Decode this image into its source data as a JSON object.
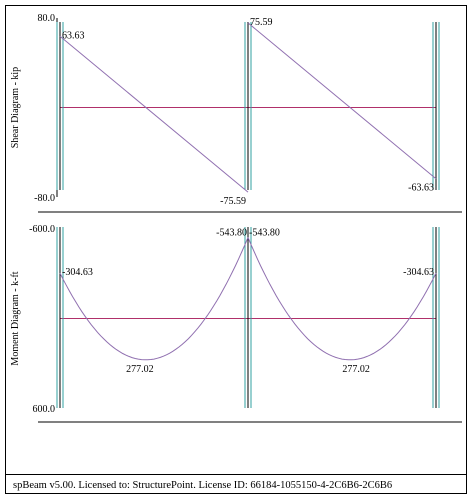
{
  "colors": {
    "zero_line": "#b0306a",
    "curve": "#9070b0",
    "support": "#30a0a0",
    "axis": "#000000"
  },
  "footer": {
    "text": "spBeam v5.00. Licensed to: StructurePoint. License ID: 66184-1055150-4-2C6B6-2C6B6"
  },
  "supports_x": [
    0,
    20,
    40
  ],
  "chart_data": [
    {
      "type": "line",
      "title": "",
      "ylabel": "Shear Diagram - kip",
      "ylim": [
        -80.0,
        80.0
      ],
      "y_inverted": false,
      "y_tick_labels": [
        "80.0",
        "-80.0"
      ],
      "xlim": [
        0,
        40
      ],
      "series": [
        {
          "x": [
            0,
            20
          ],
          "y": [
            63.63,
            -75.59
          ]
        },
        {
          "x": [
            20,
            40
          ],
          "y": [
            75.59,
            -63.63
          ]
        }
      ],
      "annotations": [
        {
          "x": 0,
          "y": 63.63,
          "text": "63.63",
          "pos": "right"
        },
        {
          "x": 20,
          "y": -75.59,
          "text": "-75.59",
          "pos": "below-left"
        },
        {
          "x": 20,
          "y": 75.59,
          "text": "75.59",
          "pos": "right"
        },
        {
          "x": 40,
          "y": -63.63,
          "text": "-63.63",
          "pos": "below-left"
        }
      ]
    },
    {
      "type": "line",
      "title": "",
      "ylabel": "Moment Diagram - k-ft",
      "ylim": [
        -600.0,
        600.0
      ],
      "y_inverted": true,
      "y_tick_labels": [
        "-600.0",
        "600.0"
      ],
      "xlim": [
        0,
        40
      ],
      "series": [
        {
          "span": [
            0,
            20
          ],
          "M_left": -304.63,
          "M_right": -543.8,
          "M_max": 277.02
        },
        {
          "span": [
            20,
            40
          ],
          "M_left": -543.8,
          "M_right": -304.63,
          "M_max": 277.02
        }
      ],
      "annotations": [
        {
          "x": 0,
          "y": -304.63,
          "text": "-304.63",
          "pos": "right"
        },
        {
          "x": 20,
          "y": -543.8,
          "text": "-543.80",
          "pos": "above-left"
        },
        {
          "x": 20,
          "y": -543.8,
          "text": "-543.80",
          "pos": "above-right"
        },
        {
          "x": 40,
          "y": -304.63,
          "text": "-304.63",
          "pos": "left"
        },
        {
          "x": 8.5,
          "y": 277.02,
          "text": "277.02",
          "pos": "below"
        },
        {
          "x": 31.5,
          "y": 277.02,
          "text": "277.02",
          "pos": "below"
        }
      ]
    }
  ]
}
